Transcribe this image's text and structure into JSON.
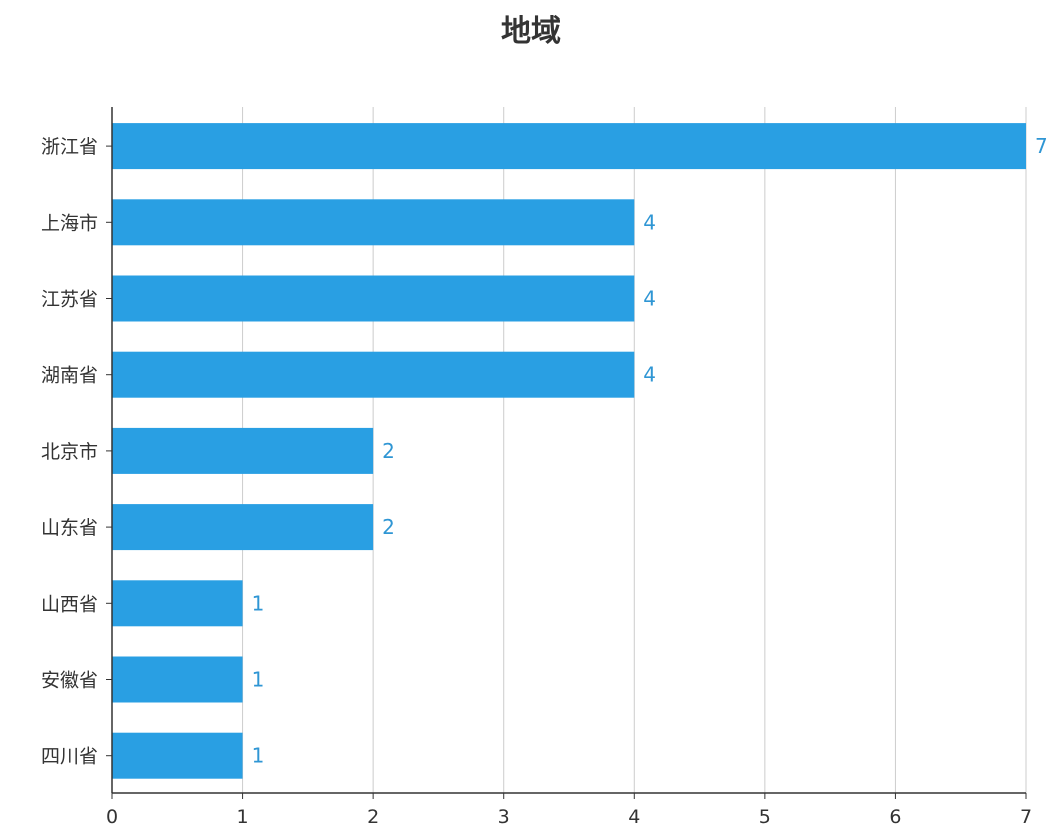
{
  "chart_data": {
    "type": "bar",
    "orientation": "horizontal",
    "title": "地域",
    "categories": [
      "浙江省",
      "上海市",
      "江苏省",
      "湖南省",
      "北京市",
      "山东省",
      "山西省",
      "安徽省",
      "四川省"
    ],
    "values": [
      7,
      4,
      4,
      4,
      2,
      2,
      1,
      1,
      1
    ],
    "xlim": [
      0,
      7
    ],
    "x_ticks": [
      0,
      1,
      2,
      3,
      4,
      5,
      6,
      7
    ],
    "grid": "vertical",
    "show_value_labels": true,
    "colors": {
      "bar": "#299FE3",
      "value_label": "#2F96D4",
      "grid": "#CCCCCC",
      "axis": "#333333",
      "text": "#333333"
    }
  }
}
